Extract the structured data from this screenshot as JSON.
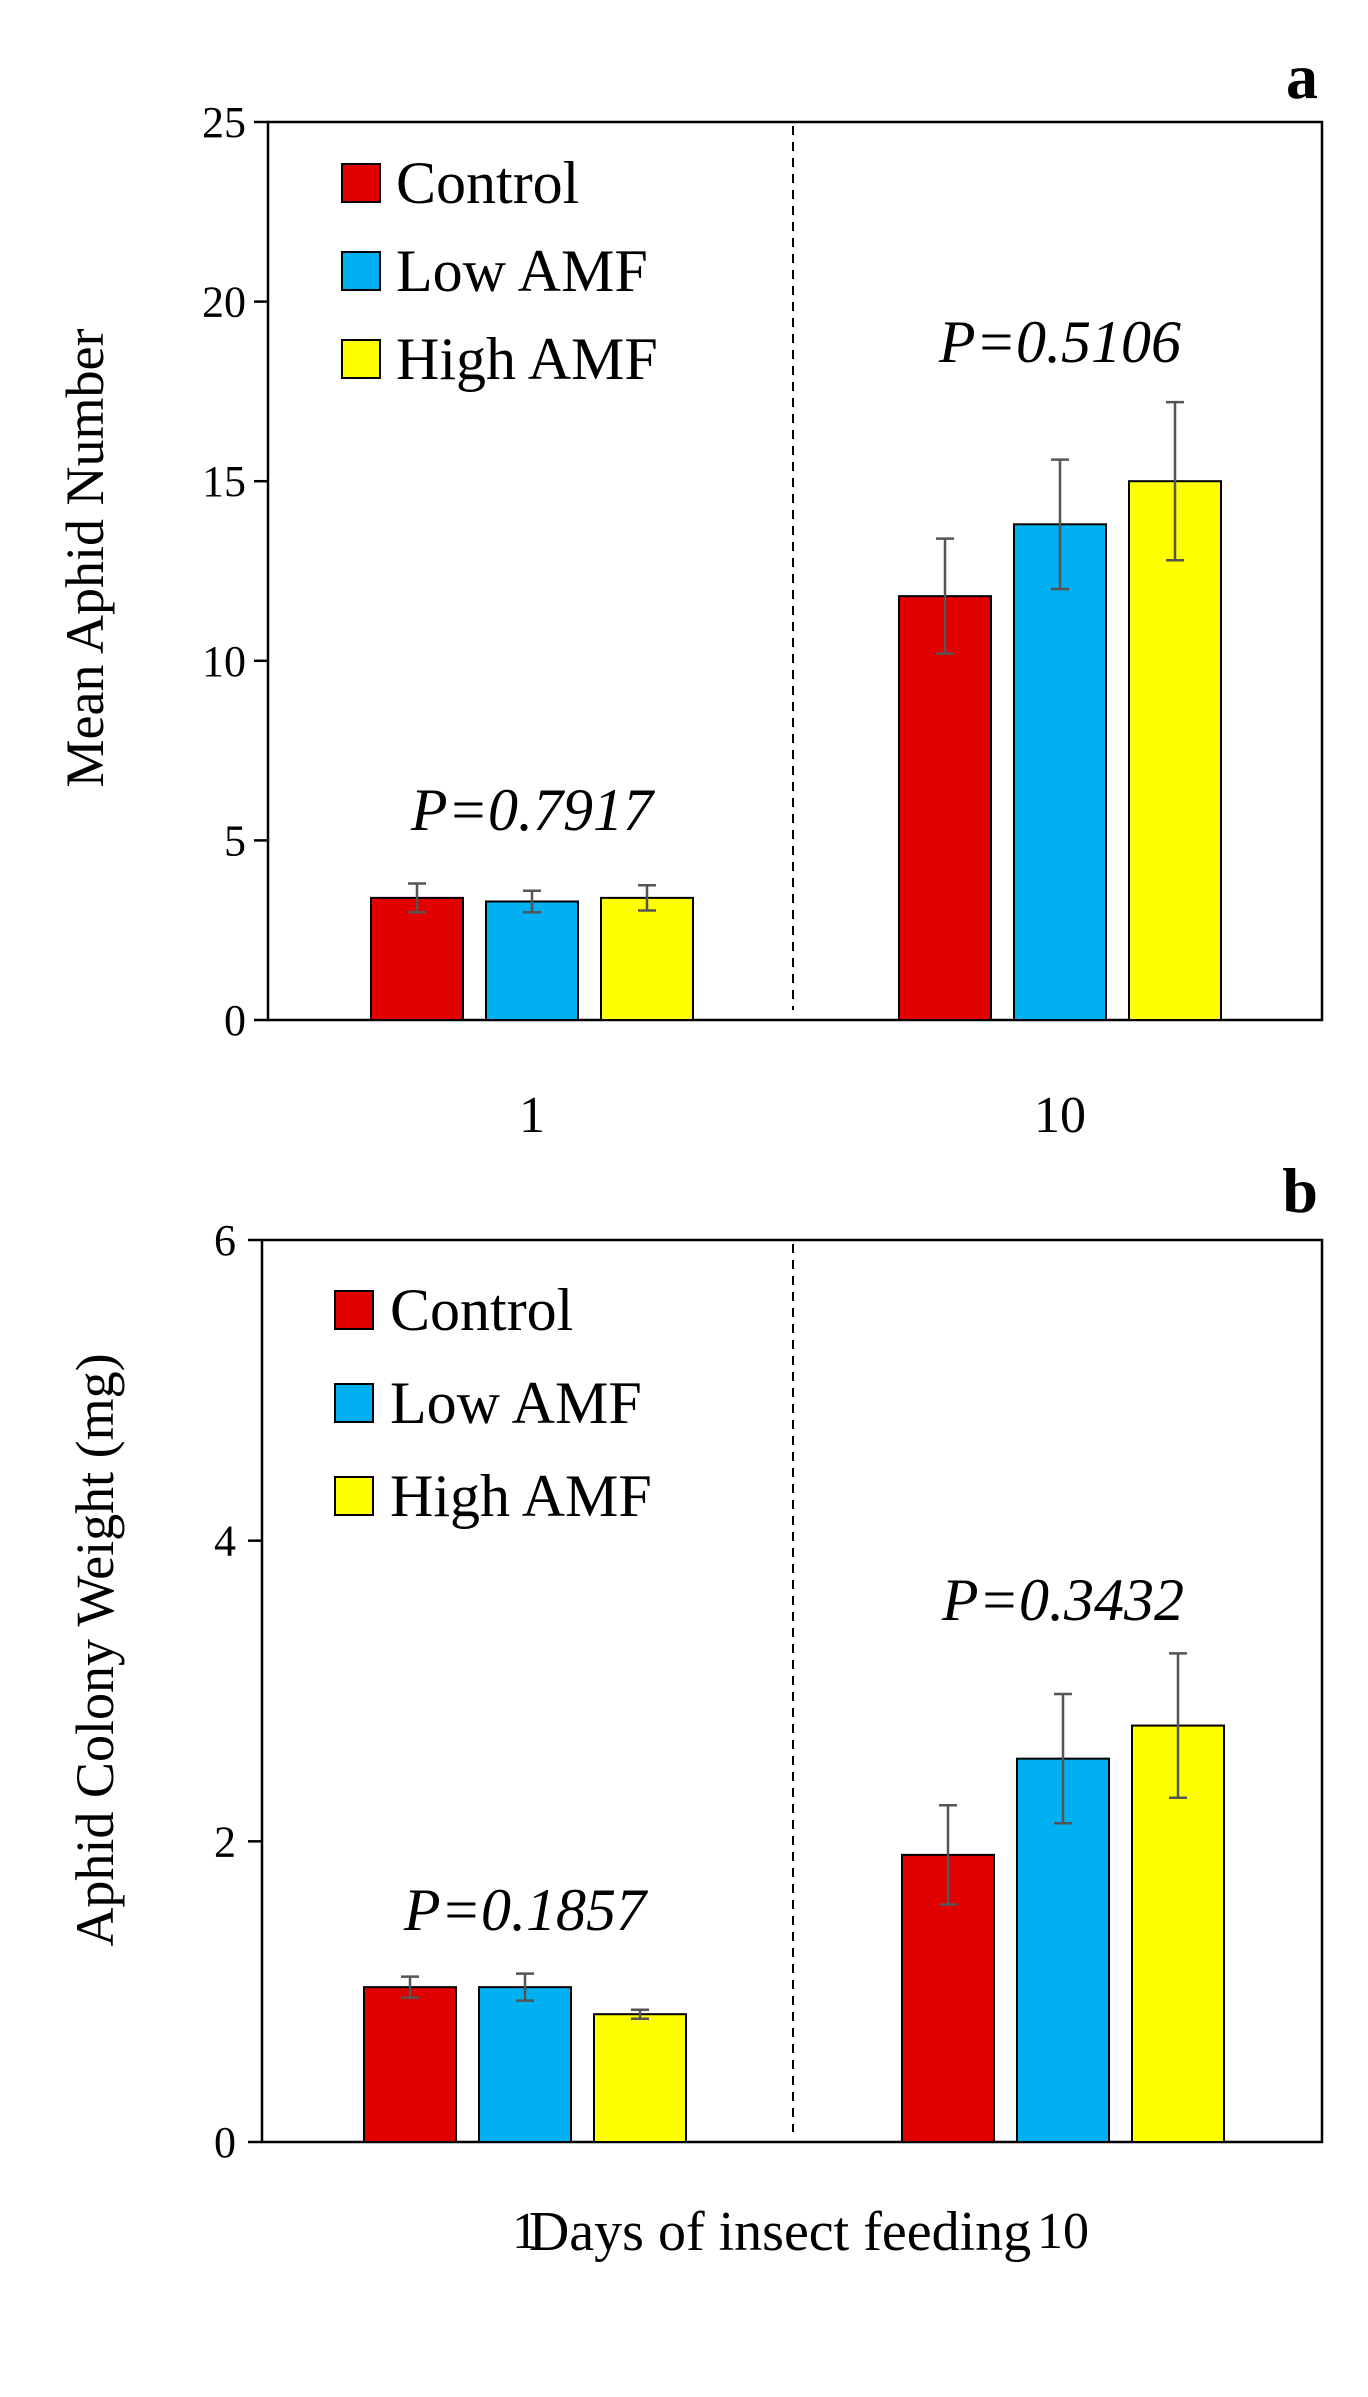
{
  "chart_data": [
    {
      "type": "bar",
      "panel_label": "a",
      "title": "",
      "ylabel": "Mean Aphid Number",
      "xlabel": "",
      "ylim": [
        0,
        25
      ],
      "yticks": [
        0,
        5,
        10,
        15,
        20,
        25
      ],
      "categories": [
        "1",
        "10"
      ],
      "series": [
        {
          "name": "Control",
          "color": "#e00000",
          "values": [
            3.4,
            11.8
          ],
          "errors": [
            0.4,
            1.6
          ]
        },
        {
          "name": "Low AMF",
          "color": "#00b0f0",
          "values": [
            3.3,
            13.8
          ],
          "errors": [
            0.3,
            1.8
          ]
        },
        {
          "name": "High AMF",
          "color": "#ffff00",
          "values": [
            3.4,
            15.0
          ],
          "errors": [
            0.35,
            2.2
          ]
        }
      ],
      "annotations": [
        "P=0.7917",
        "P=0.5106"
      ],
      "legend": "top-left",
      "separator": "dashed vertical line between groups"
    },
    {
      "type": "bar",
      "panel_label": "b",
      "title": "",
      "ylabel": "Aphid Colony Weight  (mg)",
      "xlabel": "Days  of insect  feeding",
      "ylim": [
        0,
        6
      ],
      "yticks": [
        0,
        2,
        4,
        6
      ],
      "categories": [
        "1",
        "10"
      ],
      "series": [
        {
          "name": "Control",
          "color": "#e00000",
          "values": [
            1.03,
            1.91
          ],
          "errors": [
            0.07,
            0.33
          ]
        },
        {
          "name": "Low AMF",
          "color": "#00b0f0",
          "values": [
            1.03,
            2.55
          ],
          "errors": [
            0.09,
            0.43
          ]
        },
        {
          "name": "High AMF",
          "color": "#ffff00",
          "values": [
            0.85,
            2.77
          ],
          "errors": [
            0.03,
            0.48
          ]
        }
      ],
      "annotations": [
        "P=0.1857",
        "P=0.3432"
      ],
      "legend": "top-left",
      "separator": "dashed vertical line between groups"
    }
  ]
}
